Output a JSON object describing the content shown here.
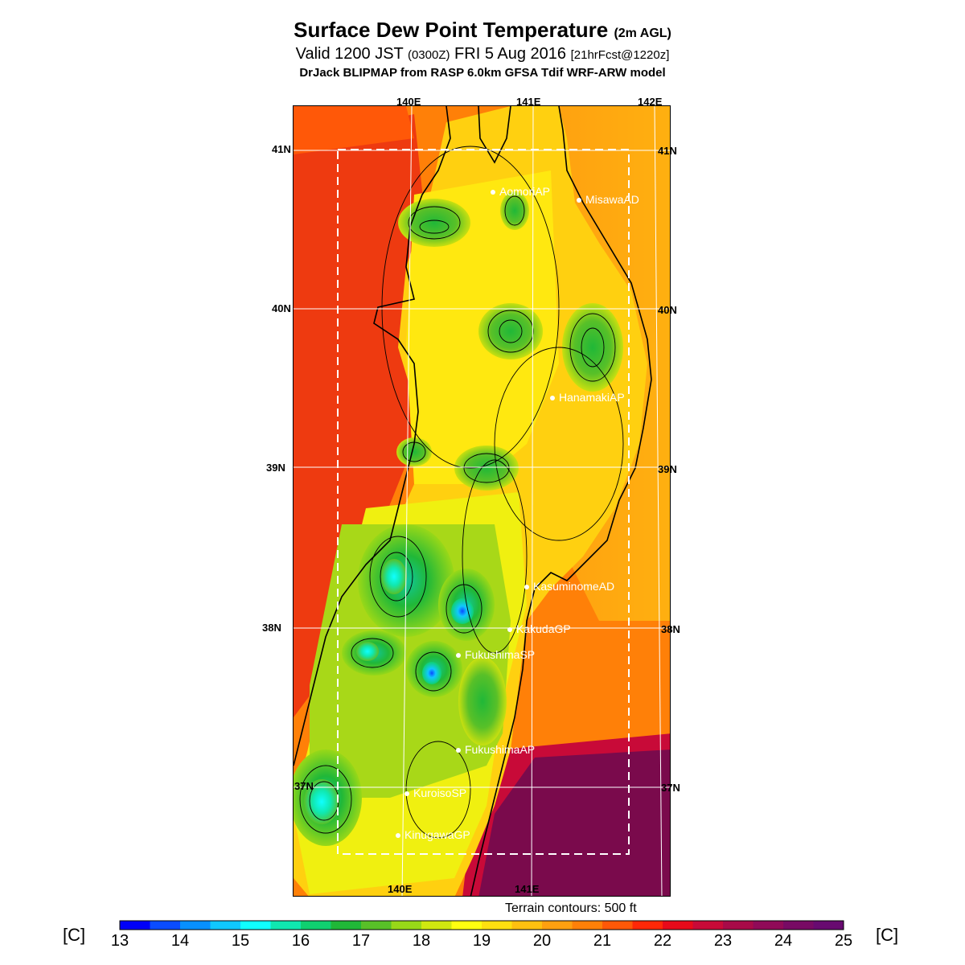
{
  "title": {
    "main": "Surface Dew Point Temperature",
    "suffix": "(2m AGL)"
  },
  "subtitle": {
    "valid": "Valid 1200 JST",
    "zulu": "(0300Z)",
    "date": "FRI 5 Aug 2016",
    "forecast": "[21hrFcst@1220z]"
  },
  "model_line": "DrJack BLIPMAP from RASP 6.0km GFSA Tdif WRF-ARW model",
  "map": {
    "lon_labels_top": [
      "140E",
      "141E",
      "142E"
    ],
    "lon_labels_bottom": [
      "140E",
      "141E"
    ],
    "lat_labels_left": [
      "41N",
      "40N",
      "39N",
      "38N",
      "37N"
    ],
    "lat_labels_right": [
      "41N",
      "40N",
      "39N",
      "38N",
      "37N"
    ],
    "ocean_west_color": "#ee3a10",
    "ocean_east_color": "#fca010",
    "ocean_south_east_color": "#7a0a4c",
    "stations": [
      {
        "name": "AomoriAP"
      },
      {
        "name": "MisawaAD"
      },
      {
        "name": "HanamakiAP"
      },
      {
        "name": "KasuminomeAD"
      },
      {
        "name": "KakudaGP"
      },
      {
        "name": "FukushimaSP"
      },
      {
        "name": "FukushimaAP"
      },
      {
        "name": "KuroisoSP"
      },
      {
        "name": "KinugawaGP"
      }
    ]
  },
  "terrain_note": "Terrain contours: 500 ft",
  "colorbar": {
    "unit": "[C]",
    "ticks": [
      "13",
      "14",
      "15",
      "16",
      "17",
      "18",
      "19",
      "20",
      "21",
      "22",
      "23",
      "24",
      "25"
    ],
    "colors": [
      "#0000f8",
      "#0a4cff",
      "#0890ff",
      "#10c8ff",
      "#10ffff",
      "#10e8b0",
      "#10d070",
      "#20b838",
      "#58c028",
      "#98d818",
      "#d0e810",
      "#ffff10",
      "#ffe010",
      "#ffc010",
      "#ffa010",
      "#ff8008",
      "#ff5808",
      "#ff2808",
      "#e80a1a",
      "#c80a38",
      "#a80a48",
      "#900a58",
      "#780a64",
      "#680a70"
    ]
  }
}
